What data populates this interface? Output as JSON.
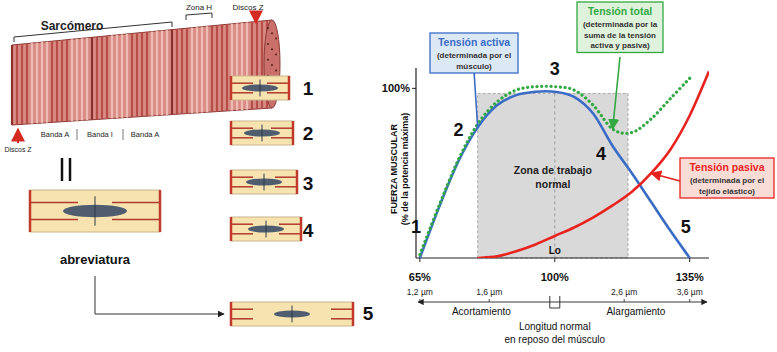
{
  "chart_data": {
    "type": "line",
    "x": [
      65,
      70,
      75,
      80,
      85,
      90,
      95,
      100,
      105,
      110,
      115,
      120,
      125,
      130,
      135,
      140
    ],
    "xlim": [
      64,
      140
    ],
    "xticks": [
      {
        "value": 65,
        "label": "65%"
      },
      {
        "value": 100,
        "label": "100%"
      },
      {
        "value": 135,
        "label": "135%"
      }
    ],
    "ylim": [
      0,
      112
    ],
    "yticks": [
      {
        "value": 100,
        "label": "100%"
      }
    ],
    "y_label": [
      "FUERZA MUSCULAR",
      "(% de la potencia máxima)"
    ],
    "x_marker": {
      "value": 100,
      "label": "Lo"
    },
    "grid": false,
    "series": [
      {
        "name": "Tensión activa",
        "note": [
          "(determinada por el",
          "músculo)"
        ],
        "color": "#3a6cc6",
        "line_style": "solid",
        "values": [
          0,
          30,
          57,
          77,
          90,
          96,
          98,
          98,
          95,
          85,
          66,
          50,
          33,
          16,
          0,
          null
        ]
      },
      {
        "name": "Tensión total",
        "note": [
          "(determinada por la",
          "suma de la tensión",
          "activa y pasiva)"
        ],
        "color": "#33a843",
        "line_style": "dotted",
        "values": [
          2,
          31,
          58,
          79,
          92,
          99,
          101,
          101,
          99,
          90,
          76,
          74,
          82,
          94,
          106,
          null
        ]
      },
      {
        "name": "Tensión pasiva",
        "note": [
          "(determinada por el",
          "tejido elástico)"
        ],
        "color": "#e8231f",
        "line_style": "solid",
        "values": [
          null,
          null,
          null,
          0,
          1,
          4,
          8,
          13,
          18,
          24,
          31,
          39,
          50,
          64,
          84,
          110
        ]
      }
    ],
    "shaded_region": {
      "x": [
        80,
        119
      ],
      "ymax": 97,
      "label": [
        "Zona de trabajo",
        "normal"
      ]
    },
    "point_labels": [
      {
        "label": "1",
        "x": 64,
        "y": 15
      },
      {
        "label": "2",
        "x": 75,
        "y": 72
      },
      {
        "label": "3",
        "x": 100,
        "y": 108
      },
      {
        "label": "4",
        "x": 112,
        "y": 58
      },
      {
        "label": "5",
        "x": 134,
        "y": 15
      }
    ],
    "length_scale": {
      "ticks": [
        {
          "value": 65,
          "label": "1,2 µm"
        },
        {
          "value": 83,
          "label": "1,6 µm"
        },
        {
          "value": 118,
          "label": "2,6 µm"
        },
        {
          "value": 135,
          "label": "3,6 µm"
        }
      ],
      "shortening": "Acortamiento",
      "lengthening": "Alargamiento",
      "rest_label": [
        "Longitud normal",
        "en reposo del músculo"
      ]
    }
  },
  "sarcomere": {
    "title": "Sarcómero",
    "zone_h": "Zona H",
    "z_discs_top": "Discos Z",
    "z_discs_bottom": "Discos Z",
    "bands": [
      "Banda A",
      "Banda I",
      "Banda A"
    ],
    "abbreviation": "abreviatura",
    "states": [
      "1",
      "2",
      "3",
      "4",
      "5"
    ]
  }
}
